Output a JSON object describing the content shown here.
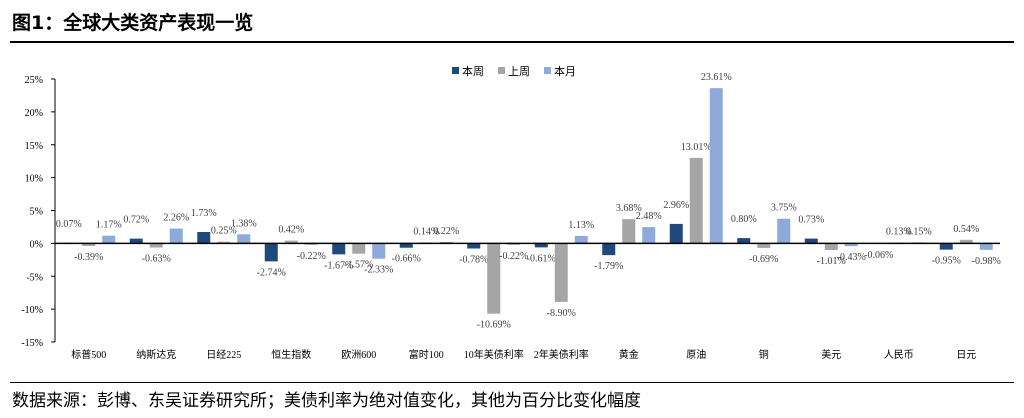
{
  "title": "图1：全球大类资产表现一览",
  "source": "数据来源：彭博、东吴证券研究所；美债利率为绝对值变化，其他为百分比变化幅度",
  "chart_data": {
    "type": "bar",
    "title": "",
    "xlabel": "",
    "ylabel": "",
    "ylim": [
      -15,
      25
    ],
    "yticks": [
      -15,
      -10,
      -5,
      0,
      5,
      10,
      15,
      20,
      25
    ],
    "ytick_labels": [
      "-15%",
      "-10%",
      "-5%",
      "0%",
      "5%",
      "10%",
      "15%",
      "20%",
      "25%"
    ],
    "legend_position": "top-center",
    "categories": [
      "标普500",
      "纳斯达克",
      "日经225",
      "恒生指数",
      "欧洲600",
      "富时100",
      "10年美债利率",
      "2年美债利率",
      "黄金",
      "原油",
      "铜",
      "美元",
      "人民币",
      "日元"
    ],
    "series": [
      {
        "name": "本周",
        "color": "#1f497d",
        "values": [
          0.07,
          0.72,
          1.73,
          -2.74,
          -1.67,
          -0.66,
          -0.78,
          -0.61,
          -1.79,
          2.96,
          0.8,
          0.73,
          -0.06,
          -0.95
        ]
      },
      {
        "name": "上周",
        "color": "#a5a5a5",
        "values": [
          -0.39,
          -0.63,
          0.25,
          0.42,
          -1.57,
          0.14,
          -10.69,
          -8.9,
          3.68,
          13.01,
          -0.69,
          -1.01,
          0.13,
          0.54
        ]
      },
      {
        "name": "本月",
        "color": "#8eaadb",
        "values": [
          1.17,
          2.26,
          1.38,
          -0.22,
          -2.33,
          0.22,
          -0.22,
          1.13,
          2.48,
          23.61,
          3.75,
          -0.43,
          0.15,
          -0.98
        ]
      }
    ]
  }
}
